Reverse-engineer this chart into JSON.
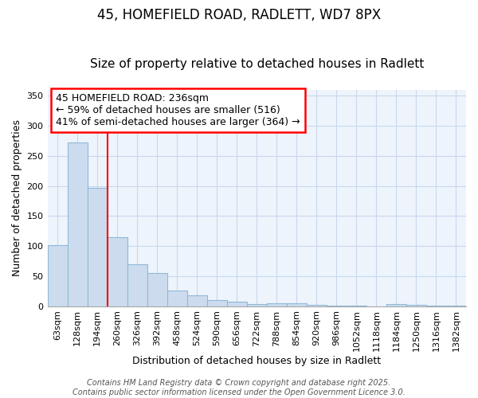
{
  "title1": "45, HOMEFIELD ROAD, RADLETT, WD7 8PX",
  "title2": "Size of property relative to detached houses in Radlett",
  "xlabel": "Distribution of detached houses by size in Radlett",
  "ylabel": "Number of detached properties",
  "bar_labels": [
    "63sqm",
    "128sqm",
    "194sqm",
    "260sqm",
    "326sqm",
    "392sqm",
    "458sqm",
    "524sqm",
    "590sqm",
    "656sqm",
    "722sqm",
    "788sqm",
    "854sqm",
    "920sqm",
    "986sqm",
    "1052sqm",
    "1118sqm",
    "1184sqm",
    "1250sqm",
    "1316sqm",
    "1382sqm"
  ],
  "bar_values": [
    101,
    272,
    197,
    115,
    69,
    55,
    26,
    18,
    10,
    8,
    3,
    5,
    5,
    2,
    1,
    1,
    0,
    3,
    2,
    1,
    1
  ],
  "bar_color": "#ccdcee",
  "bar_edge_color": "#90b8d8",
  "ylim": [
    0,
    360
  ],
  "yticks": [
    0,
    50,
    100,
    150,
    200,
    250,
    300,
    350
  ],
  "red_line_x": 3.0,
  "annotation_line1": "45 HOMEFIELD ROAD: 236sqm",
  "annotation_line2": "← 59% of detached houses are smaller (516)",
  "annotation_line3": "41% of semi-detached houses are larger (364) →",
  "grid_color": "#c8d8ec",
  "background_color": "#e8f0f8",
  "axes_background": "#eef4fc",
  "footer_text": "Contains HM Land Registry data © Crown copyright and database right 2025.\nContains public sector information licensed under the Open Government Licence 3.0.",
  "title_fontsize": 12,
  "subtitle_fontsize": 11,
  "axis_label_fontsize": 9,
  "tick_fontsize": 8,
  "annotation_fontsize": 9,
  "footer_fontsize": 7
}
